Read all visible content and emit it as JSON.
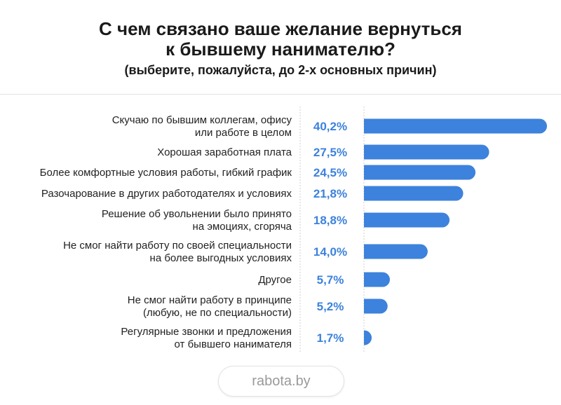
{
  "header": {
    "title_line1": "С чем связано ваше желание вернуться",
    "title_line2": "к бывшему нанимателю?",
    "subtitle": "(выберите, пожалуйста, до 2-х основных причин)"
  },
  "footer": {
    "brand": "rabota.by"
  },
  "colors": {
    "bar": "#3d82dc",
    "value_text": "#3d82dc",
    "axis": "#cfcfcf"
  },
  "chart_data": {
    "type": "bar",
    "orientation": "horizontal",
    "title": "С чем связано ваше желание вернуться к бывшему нанимателю?",
    "subtitle": "(выберите, пожалуйста, до 2-х основных причин)",
    "categories": [
      [
        "Скучаю по бывшим коллегам, офису",
        "или работе в целом"
      ],
      [
        "Хорошая заработная плата"
      ],
      [
        "Более комфортные условия работы, гибкий график"
      ],
      [
        "Разочарование в других работодателях и условиях"
      ],
      [
        "Решение об увольнении было принято",
        "на эмоциях, сгоряча"
      ],
      [
        "Не смог найти работу по своей специальности",
        "на более выгодных условиях"
      ],
      [
        "Другое"
      ],
      [
        "Не смог найти работу в принципе",
        "(любую, не по специальности)"
      ],
      [
        "Регулярные звонки и предложения",
        "от бывшего нанимателя"
      ]
    ],
    "values": [
      40.2,
      27.5,
      24.5,
      21.8,
      18.8,
      14.0,
      5.7,
      5.2,
      1.7
    ],
    "value_labels": [
      "40,2%",
      "27,5%",
      "24,5%",
      "21,8%",
      "18,8%",
      "14,0%",
      "5,7%",
      "5,2%",
      "1,7%"
    ],
    "xlim": [
      0,
      40.2
    ],
    "grid": false,
    "legend": "none"
  }
}
